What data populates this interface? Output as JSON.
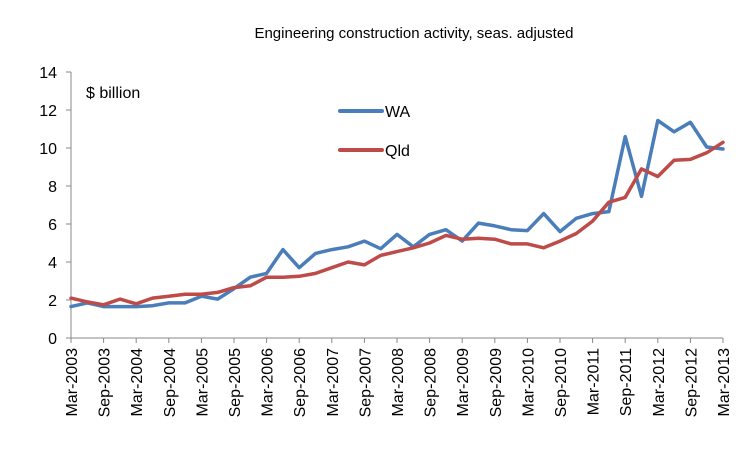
{
  "chart_data": {
    "type": "line",
    "title": "Engineering construction activity, seas. adjusted",
    "unit_label": "$ billion",
    "xlabel": "",
    "ylabel": "",
    "ylim": [
      0,
      14
    ],
    "yticks": [
      0,
      2,
      4,
      6,
      8,
      10,
      12,
      14
    ],
    "x_tick_labels": [
      "Mar-2003",
      "Sep-2003",
      "Mar-2004",
      "Sep-2004",
      "Mar-2005",
      "Sep-2005",
      "Mar-2006",
      "Sep-2006",
      "Mar-2007",
      "Sep-2007",
      "Mar-2008",
      "Sep-2008",
      "Mar-2009",
      "Sep-2009",
      "Mar-2010",
      "Sep-2010",
      "Mar-2011",
      "Sep-2011",
      "Mar-2012",
      "Sep-2012",
      "Mar-2013"
    ],
    "quarters_count": 41,
    "grid": false,
    "legend_position": "top-center",
    "series": [
      {
        "name": "WA",
        "color": "#4a7ebb",
        "values": [
          1.65,
          1.85,
          1.65,
          1.65,
          1.65,
          1.7,
          1.85,
          1.85,
          2.2,
          2.05,
          2.6,
          3.2,
          3.4,
          4.65,
          3.7,
          4.45,
          4.65,
          4.8,
          5.1,
          4.7,
          5.45,
          4.8,
          5.45,
          5.7,
          5.1,
          6.05,
          5.9,
          5.7,
          5.65,
          6.55,
          5.6,
          6.3,
          6.55,
          6.65,
          10.6,
          7.45,
          11.45,
          10.85,
          11.35,
          10.05,
          9.95
        ]
      },
      {
        "name": "Qld",
        "color": "#be4b48",
        "values": [
          2.1,
          1.9,
          1.75,
          2.05,
          1.8,
          2.1,
          2.2,
          2.3,
          2.3,
          2.4,
          2.65,
          2.75,
          3.2,
          3.2,
          3.25,
          3.4,
          3.7,
          4.0,
          3.85,
          4.35,
          4.55,
          4.75,
          5.0,
          5.4,
          5.2,
          5.25,
          5.2,
          4.95,
          4.95,
          4.75,
          5.1,
          5.5,
          6.15,
          7.15,
          7.4,
          8.9,
          8.5,
          9.35,
          9.4,
          9.75,
          10.3
        ]
      }
    ]
  }
}
